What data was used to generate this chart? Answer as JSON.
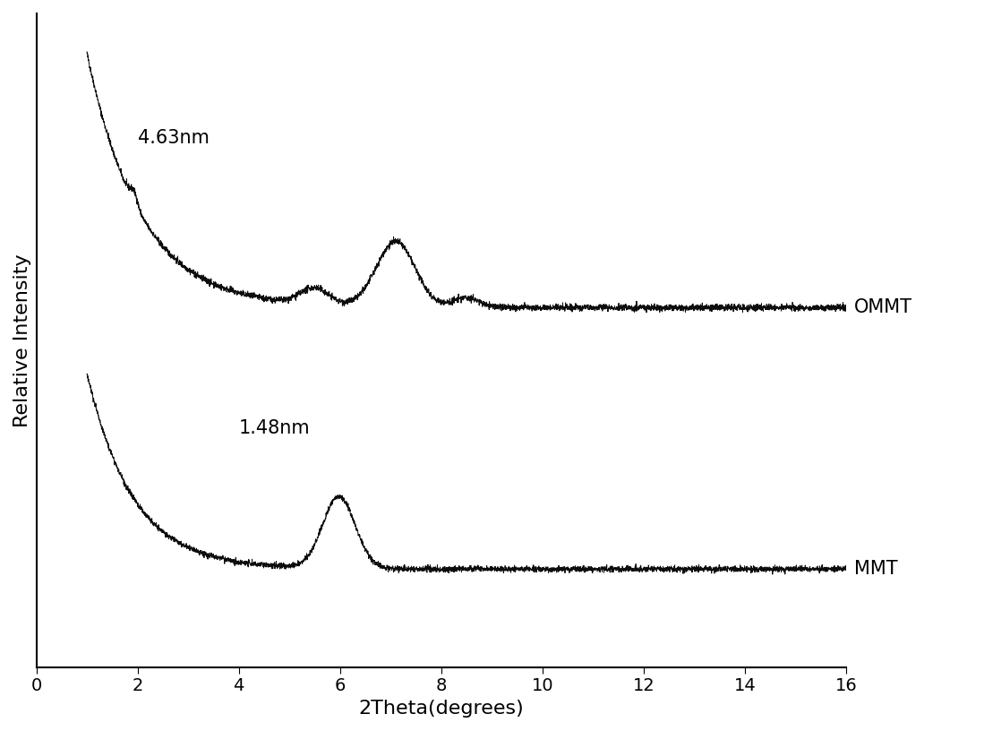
{
  "xlabel": "2Theta(degrees)",
  "ylabel": "Relative Intensity",
  "xlim": [
    0,
    16
  ],
  "ommt_label": "OMMT",
  "mmt_label": "MMT",
  "ommt_annotation": "4.63nm",
  "mmt_annotation": "1.48nm",
  "line_color": "#000000",
  "background_color": "#ffffff",
  "xlabel_fontsize": 16,
  "ylabel_fontsize": 16,
  "tick_fontsize": 14,
  "annotation_fontsize": 15,
  "label_fontsize": 15,
  "xticks": [
    0,
    2,
    4,
    6,
    8,
    10,
    12,
    14,
    16
  ],
  "ylim": [
    0,
    10.0
  ]
}
